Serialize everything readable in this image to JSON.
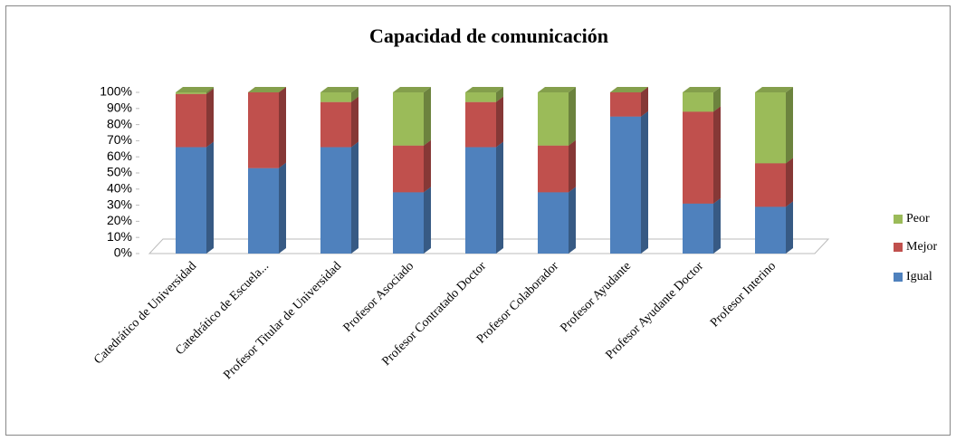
{
  "chart_data": {
    "type": "stacked_bar_3d",
    "title": "Capacidad de comunicación",
    "categories": [
      "Catedrático de Universidad",
      "Catedrático de Escuela...",
      "Profesor Titular de Universidad",
      "Profesor Asociado",
      "Profesor Contratado Doctor",
      "Profesor Colaborador",
      "Profesor Ayudante",
      "Profesor Ayudante Doctor",
      "Profesor Interino"
    ],
    "series": [
      {
        "name": "Igual",
        "color": "#4f81bd",
        "values": [
          66,
          53,
          66,
          38,
          66,
          38,
          85,
          31,
          29
        ]
      },
      {
        "name": "Mejor",
        "color": "#c0504d",
        "values": [
          33,
          47,
          28,
          29,
          28,
          29,
          15,
          57,
          27
        ]
      },
      {
        "name": "Peor",
        "color": "#9bbb59",
        "values": [
          1,
          0,
          6,
          33,
          6,
          33,
          0,
          12,
          44
        ]
      }
    ],
    "ylim": [
      0,
      100
    ],
    "yticks": [
      {
        "value": 0,
        "label": "0%"
      },
      {
        "value": 10,
        "label": "10%"
      },
      {
        "value": 20,
        "label": "20%"
      },
      {
        "value": 30,
        "label": "30%"
      },
      {
        "value": 40,
        "label": "40%"
      },
      {
        "value": 50,
        "label": "50%"
      },
      {
        "value": 60,
        "label": "60%"
      },
      {
        "value": 70,
        "label": "70%"
      },
      {
        "value": 80,
        "label": "80%"
      },
      {
        "value": 90,
        "label": "90%"
      },
      {
        "value": 100,
        "label": "100%"
      }
    ],
    "legend": "right"
  }
}
